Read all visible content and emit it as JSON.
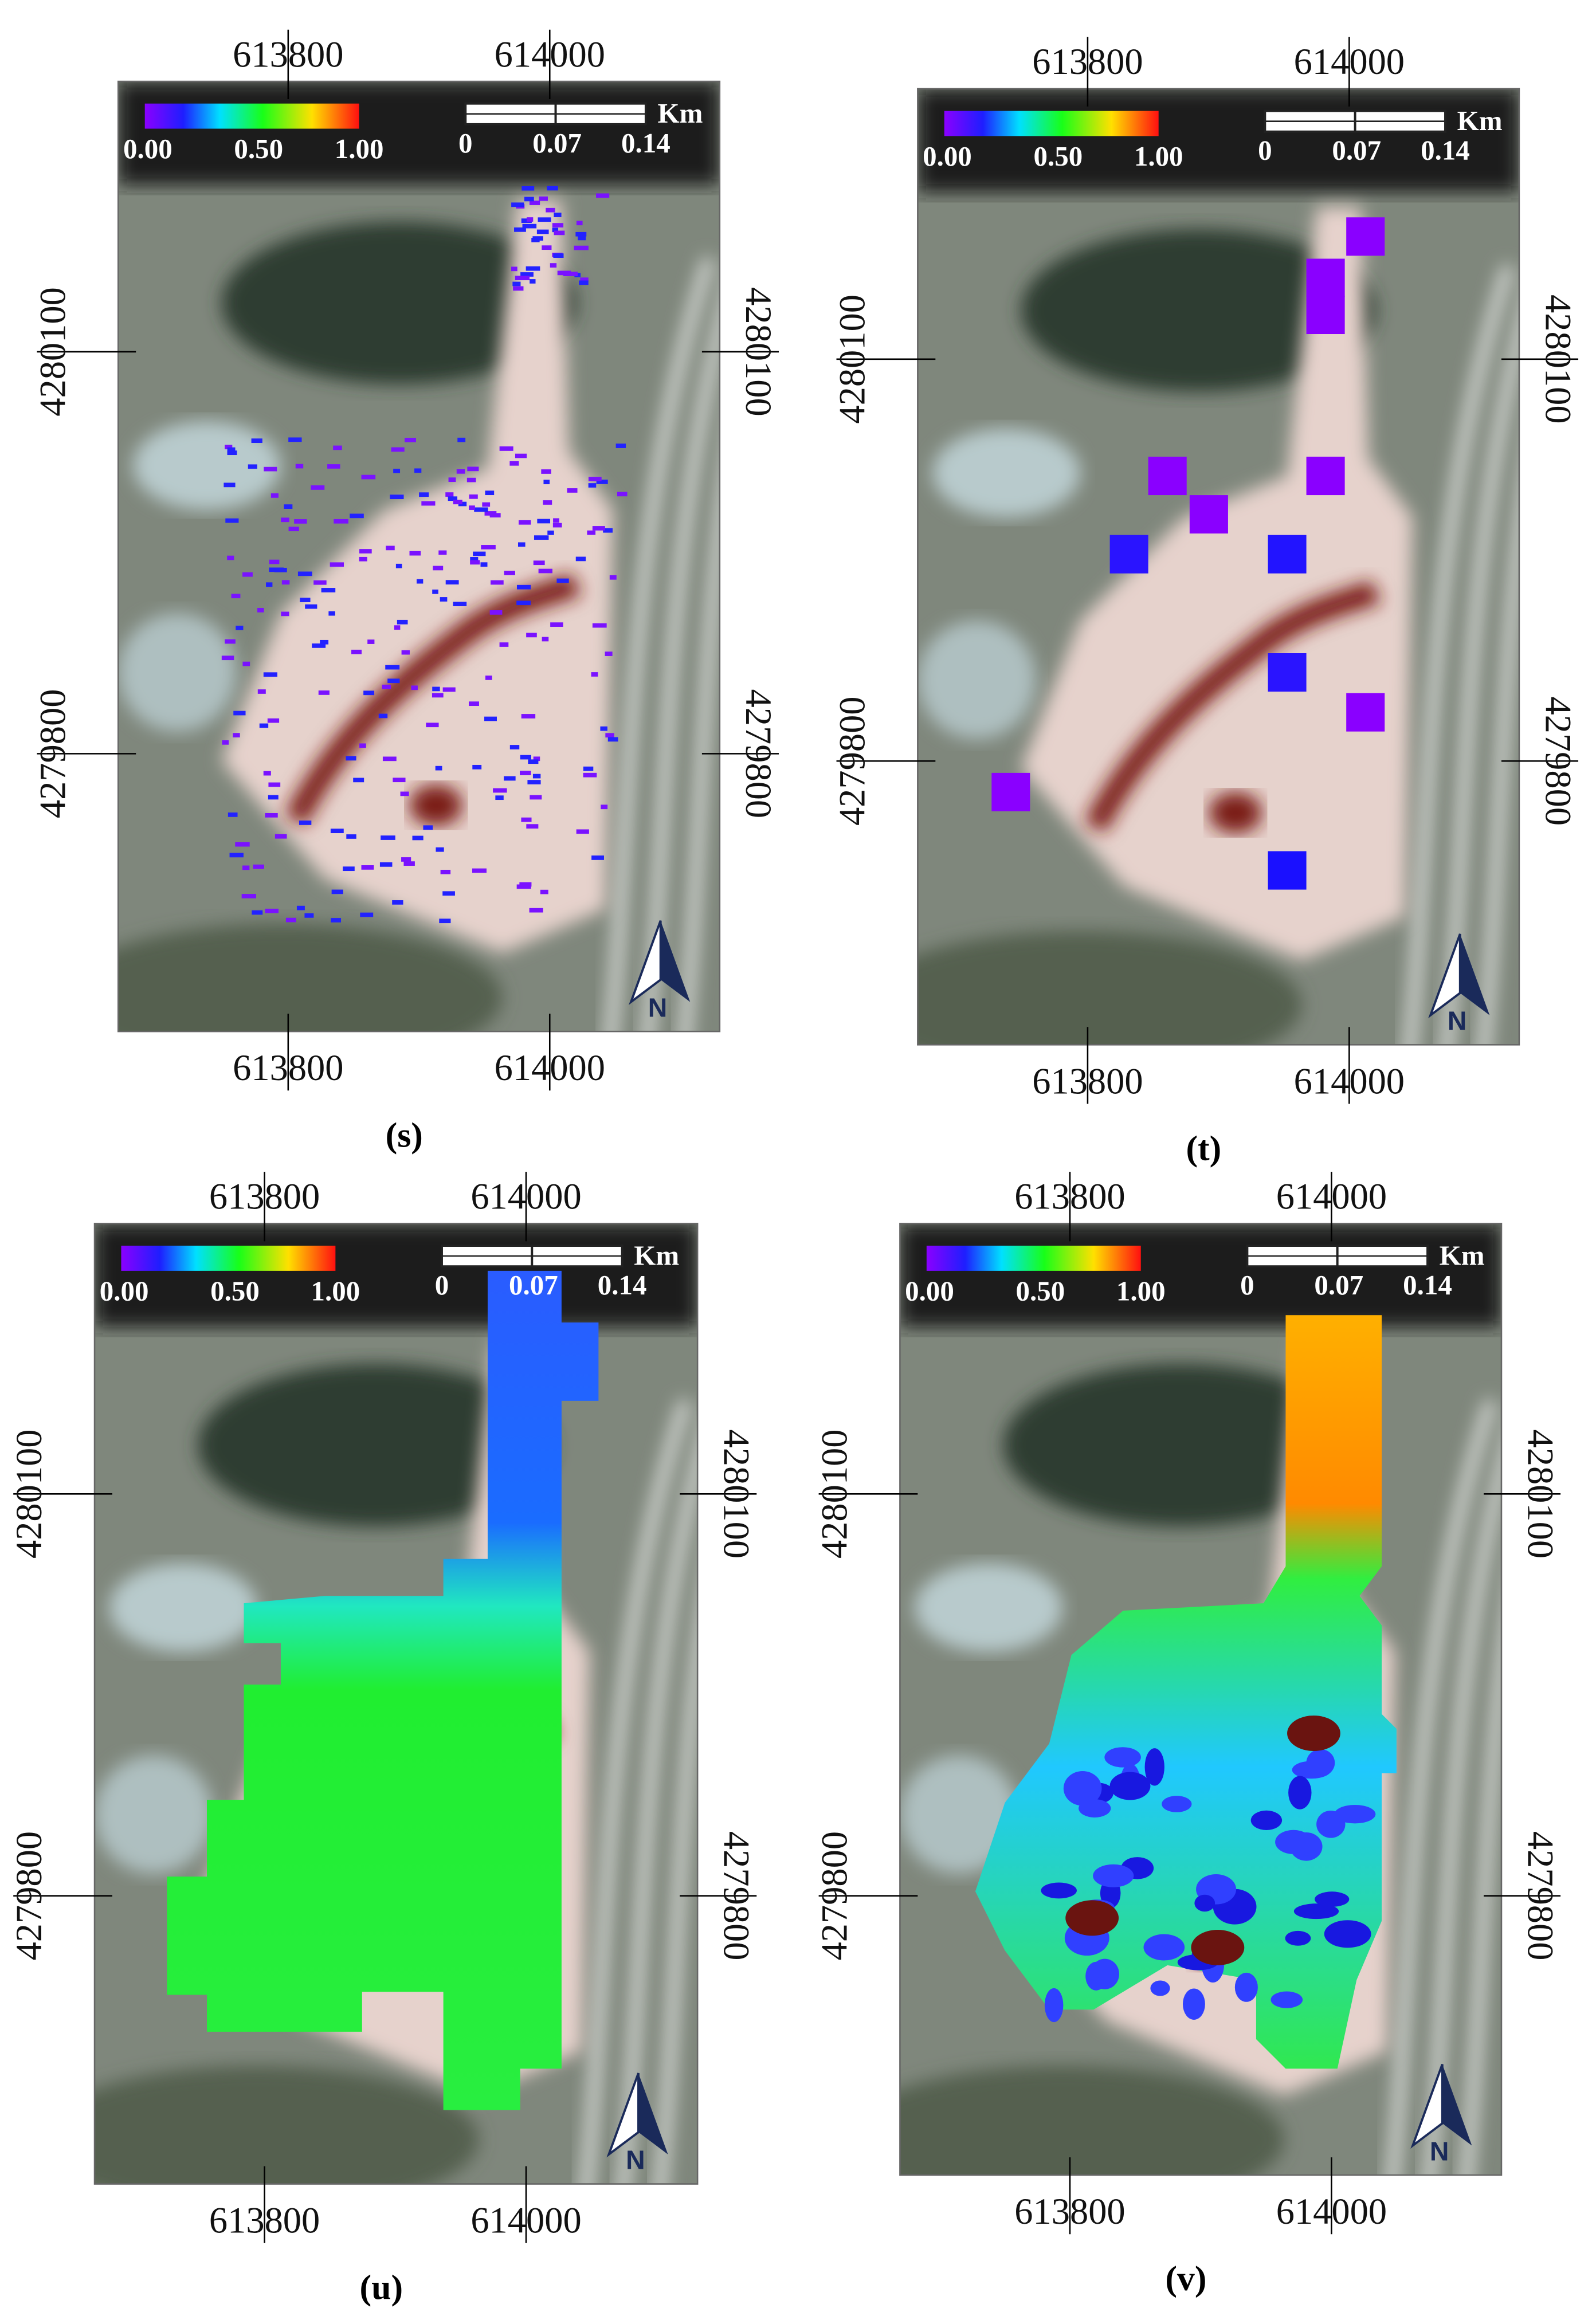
{
  "panels": [
    {
      "label": "(s)"
    },
    {
      "label": "(t)"
    },
    {
      "label": "(u)"
    },
    {
      "label": "(v)"
    }
  ],
  "map": {
    "x_ticks": [
      "613800",
      "614000"
    ],
    "y_ticks": [
      "4280100",
      "4279800"
    ],
    "colorbar_ticks": [
      "0.00",
      "0.50",
      "1.00"
    ],
    "scale_ticks": [
      "0",
      "0.07",
      "0.14"
    ],
    "scale_unit": "Km",
    "north": "N"
  }
}
